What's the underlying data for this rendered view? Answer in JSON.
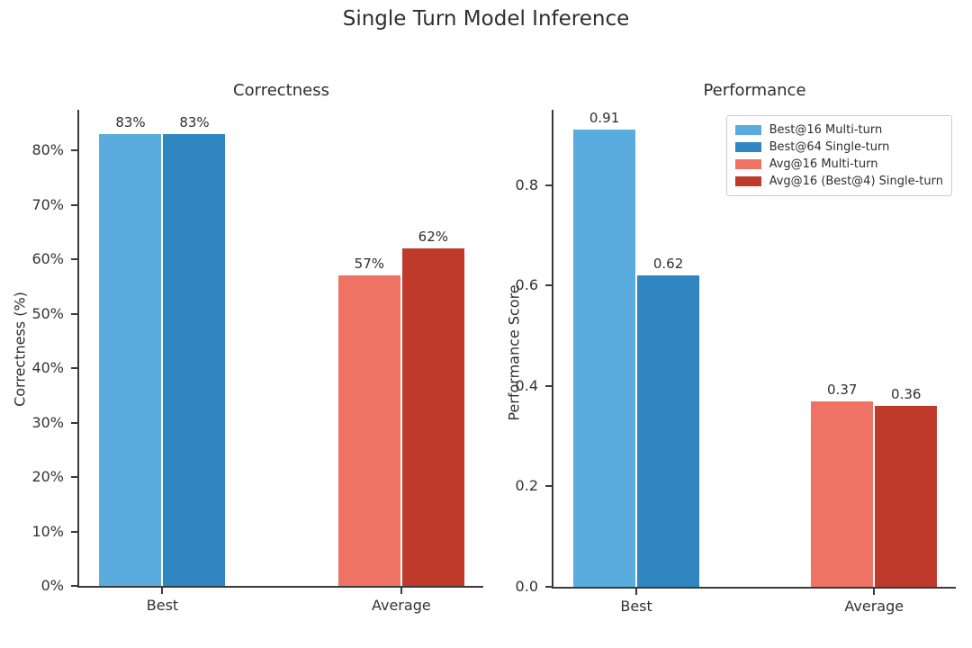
{
  "page_title": "Single Turn Model Inference",
  "colors": {
    "best16_multiturn": "#5BACDE",
    "best64_singleturn": "#2F86C1",
    "avg16_multiturn": "#EE7365",
    "avg16_best4_singleturn": "#C03A2B",
    "text": "#2e2e2e",
    "spine": "#3a3a3a",
    "legend_border": "#cccccc"
  },
  "chart_data": [
    {
      "type": "bar",
      "title": "Correctness",
      "xlabel": "",
      "ylabel": "Correctness (%)",
      "categories": [
        "Best",
        "Average"
      ],
      "series": [
        {
          "name": "Best@16 Multi-turn",
          "color": "#5BACDE",
          "values": [
            83,
            null
          ],
          "labels": [
            "83%",
            null
          ]
        },
        {
          "name": "Best@64 Single-turn",
          "color": "#2F86C1",
          "values": [
            83,
            null
          ],
          "labels": [
            "83%",
            null
          ]
        },
        {
          "name": "Avg@16 Multi-turn",
          "color": "#EE7365",
          "values": [
            null,
            57
          ],
          "labels": [
            null,
            "57%"
          ]
        },
        {
          "name": "Avg@16 (Best@4) Single-turn",
          "color": "#C03A2B",
          "values": [
            null,
            62
          ],
          "labels": [
            null,
            "62%"
          ]
        }
      ],
      "ylim": [
        0,
        87.5
      ],
      "yticks": {
        "values": [
          0,
          10,
          20,
          30,
          40,
          50,
          60,
          70,
          80
        ],
        "labels": [
          "0%",
          "10%",
          "20%",
          "30%",
          "40%",
          "50%",
          "60%",
          "70%",
          "80%"
        ]
      },
      "grid": false,
      "legend": null
    },
    {
      "type": "bar",
      "title": "Performance",
      "xlabel": "",
      "ylabel": "Performance Score",
      "categories": [
        "Best",
        "Average"
      ],
      "series": [
        {
          "name": "Best@16 Multi-turn",
          "color": "#5BACDE",
          "values": [
            0.91,
            null
          ],
          "labels": [
            "0.91",
            null
          ]
        },
        {
          "name": "Best@64 Single-turn",
          "color": "#2F86C1",
          "values": [
            0.62,
            null
          ],
          "labels": [
            "0.62",
            null
          ]
        },
        {
          "name": "Avg@16 Multi-turn",
          "color": "#EE7365",
          "values": [
            null,
            0.37
          ],
          "labels": [
            null,
            "0.37"
          ]
        },
        {
          "name": "Avg@16 (Best@4) Single-turn",
          "color": "#C03A2B",
          "values": [
            null,
            0.36
          ],
          "labels": [
            null,
            "0.36"
          ]
        }
      ],
      "ylim": [
        0,
        0.95
      ],
      "yticks": {
        "values": [
          0,
          0.2,
          0.4,
          0.6,
          0.8
        ],
        "labels": [
          "0.0",
          "0.2",
          "0.4",
          "0.6",
          "0.8"
        ]
      },
      "grid": false,
      "legend": {
        "position": "upper right",
        "items": [
          {
            "label": "Best@16 Multi-turn",
            "color": "#5BACDE"
          },
          {
            "label": "Best@64 Single-turn",
            "color": "#2F86C1"
          },
          {
            "label": "Avg@16 Multi-turn",
            "color": "#EE7365"
          },
          {
            "label": "Avg@16 (Best@4) Single-turn",
            "color": "#C03A2B"
          }
        ]
      }
    }
  ]
}
